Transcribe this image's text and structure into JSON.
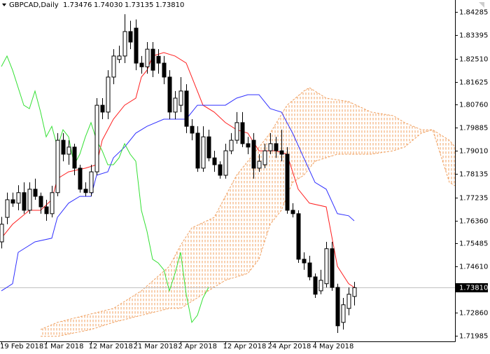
{
  "chart_data": {
    "type": "candlestick",
    "header": {
      "symbol": "GBPCAD,Daily",
      "values": [
        "1.73476",
        "1.74030",
        "1.73135",
        "1.73810"
      ]
    },
    "ylim": [
      1.71769,
      1.84738
    ],
    "yticks": [
      1.84285,
      1.83395,
      {
        "value": 1.8251,
        "label": "1.82510"
      },
      1.81625,
      {
        "value": 1.8076,
        "label": "1.80760"
      },
      1.79885,
      {
        "value": 1.7901,
        "label": "1.79010"
      },
      1.78135,
      1.77235,
      {
        "value": 1.7636,
        "label": "1.76360"
      },
      1.75485,
      {
        "value": 1.7461,
        "label": "1.74610"
      },
      {
        "value": 1.7286,
        "label": "1.72860"
      },
      1.71985
    ],
    "current_price": {
      "value": 1.7381,
      "label": "1.73810"
    },
    "xlim": [
      -0.25,
      81
    ],
    "xticks": [
      {
        "value": 0,
        "label": "19 Feb 2018"
      },
      {
        "value": 8,
        "label": "1 Mar 2018"
      },
      {
        "value": 16,
        "label": "12 Mar 2018"
      },
      {
        "value": 24,
        "label": "21 Mar 2018"
      },
      {
        "value": 32,
        "label": "2 Apr 2018"
      },
      {
        "value": 40,
        "label": "12 Apr 2018"
      },
      {
        "value": 48,
        "label": "24 Apr 2018"
      },
      {
        "value": 56,
        "label": "4 May 2018"
      }
    ],
    "up_color": "#ffffff",
    "down_color": "#000000",
    "wick_color": "#000000",
    "ohlc": [
      [
        1.7555,
        1.765,
        1.753,
        1.7622
      ],
      [
        1.7648,
        1.7742,
        1.7622,
        1.7715
      ],
      [
        1.7715,
        1.7742,
        1.7688,
        1.7702
      ],
      [
        1.7702,
        1.777,
        1.7675,
        1.7742
      ],
      [
        1.7742,
        1.7781,
        1.7662,
        1.7675
      ],
      [
        1.7675,
        1.7781,
        1.7662,
        1.7755
      ],
      [
        1.7755,
        1.7795,
        1.7715,
        1.7728
      ],
      [
        1.7728,
        1.7742,
        1.7662,
        1.7688
      ],
      [
        1.7688,
        1.7715,
        1.7635,
        1.7662
      ],
      [
        1.7662,
        1.7768,
        1.7648,
        1.7742
      ],
      [
        1.7742,
        1.7968,
        1.7728,
        1.7941
      ],
      [
        1.7941,
        1.7968,
        1.7861,
        1.7888
      ],
      [
        1.7888,
        1.7941,
        1.7848,
        1.7915
      ],
      [
        1.7915,
        1.7928,
        1.7808,
        1.7835
      ],
      [
        1.7835,
        1.7848,
        1.7742,
        1.7755
      ],
      [
        1.7755,
        1.7781,
        1.7728,
        1.7742
      ],
      [
        1.7742,
        1.7848,
        1.7728,
        1.7821
      ],
      [
        1.7821,
        1.8101,
        1.7808,
        1.8074
      ],
      [
        1.8074,
        1.8101,
        1.8021,
        1.8048
      ],
      [
        1.8048,
        1.8207,
        1.8021,
        1.8181
      ],
      [
        1.8181,
        1.8287,
        1.8154,
        1.8261
      ],
      [
        1.8248,
        1.83,
        1.8234,
        1.8261
      ],
      [
        1.8261,
        1.842,
        1.8234,
        1.8354
      ],
      [
        1.8354,
        1.8395,
        1.8287,
        1.8314
      ],
      [
        1.8367,
        1.84,
        1.8207,
        1.8234
      ],
      [
        1.8234,
        1.8261,
        1.8194,
        1.822
      ],
      [
        1.822,
        1.8314,
        1.8194,
        1.8287
      ],
      [
        1.8287,
        1.8314,
        1.8181,
        1.8207
      ],
      [
        1.826,
        1.8287,
        1.8194,
        1.8234
      ],
      [
        1.8234,
        1.8261,
        1.8154,
        1.8181
      ],
      [
        1.8181,
        1.8207,
        1.8021,
        1.8048
      ],
      [
        1.8048,
        1.8128,
        1.8021,
        1.8101
      ],
      [
        1.8074,
        1.8181,
        1.8048,
        1.8128
      ],
      [
        1.8128,
        1.8154,
        1.7968,
        1.7994
      ],
      [
        1.7994,
        1.8021,
        1.7941,
        1.7968
      ],
      [
        1.7968,
        1.7994,
        1.7821,
        1.7835
      ],
      [
        1.7835,
        1.7994,
        1.7821,
        1.7954
      ],
      [
        1.7954,
        1.7981,
        1.7861,
        1.7874
      ],
      [
        1.7874,
        1.7901,
        1.7821,
        1.7848
      ],
      [
        1.7848,
        1.7861,
        1.7795,
        1.7808
      ],
      [
        1.7808,
        1.7928,
        1.7795,
        1.7901
      ],
      [
        1.7901,
        1.7968,
        1.7888,
        1.7941
      ],
      [
        1.7941,
        1.8048,
        1.7928,
        1.8008
      ],
      [
        1.8008,
        1.8048,
        1.7915,
        1.7928
      ],
      [
        1.7928,
        1.7954,
        1.7888,
        1.7915
      ],
      [
        1.7941,
        1.7968,
        1.7795,
        1.7835
      ],
      [
        1.7835,
        1.7888,
        1.7821,
        1.7861
      ],
      [
        1.7848,
        1.7928,
        1.7835,
        1.7901
      ],
      [
        1.7901,
        1.7968,
        1.7888,
        1.7928
      ],
      [
        1.7928,
        1.7954,
        1.7874,
        1.7901
      ],
      [
        1.7901,
        1.7981,
        1.7861,
        1.7888
      ],
      [
        1.7888,
        1.7915,
        1.7662,
        1.7675
      ],
      [
        1.7675,
        1.7702,
        1.7648,
        1.7662
      ],
      [
        1.7662,
        1.7675,
        1.7475,
        1.7489
      ],
      [
        1.7489,
        1.7515,
        1.7449,
        1.7475
      ],
      [
        1.7475,
        1.7502,
        1.7409,
        1.7422
      ],
      [
        1.7422,
        1.7435,
        1.7342,
        1.7356
      ],
      [
        1.7369,
        1.7449,
        1.7356,
        1.7409
      ],
      [
        1.7396,
        1.7555,
        1.7382,
        1.7529
      ],
      [
        1.7529,
        1.7555,
        1.7369,
        1.7382
      ],
      [
        1.7382,
        1.7396,
        1.7209,
        1.7236
      ],
      [
        1.7249,
        1.7342,
        1.7222,
        1.7316
      ],
      [
        1.7302,
        1.7382,
        1.7276,
        1.7356
      ],
      [
        1.73476,
        1.7403,
        1.73135,
        1.7381
      ]
    ],
    "series": [
      {
        "color": "#ff2020",
        "x": [
          0,
          2,
          5,
          7,
          9,
          10,
          12,
          15,
          17,
          18,
          20,
          22,
          24,
          25,
          26,
          27,
          29,
          31,
          33,
          34,
          36,
          38,
          40,
          42,
          44,
          46,
          49,
          51,
          53,
          55,
          58,
          60,
          62,
          63
        ],
        "values": [
          1.7569,
          1.7622,
          1.7675,
          1.7675,
          1.7715,
          1.7795,
          1.7821,
          1.7835,
          1.7848,
          1.7941,
          1.8021,
          1.8074,
          1.8101,
          1.8181,
          1.8207,
          1.8261,
          1.8274,
          1.8261,
          1.8234,
          1.8181,
          1.8074,
          1.8048,
          1.8008,
          1.7981,
          1.7968,
          1.7901,
          1.7901,
          1.7888,
          1.7755,
          1.7702,
          1.7688,
          1.7462,
          1.7396,
          1.7382
        ]
      },
      {
        "color": "#3030ff",
        "x": [
          0,
          2,
          3,
          6,
          9,
          10,
          12,
          14,
          16,
          17,
          19,
          20,
          22,
          24,
          26,
          29,
          33,
          35,
          38,
          40,
          42,
          44,
          46,
          48,
          50,
          52,
          54,
          56,
          58,
          60,
          62,
          63
        ],
        "values": [
          1.7369,
          1.7396,
          1.7515,
          1.7555,
          1.7569,
          1.7648,
          1.7702,
          1.7728,
          1.7728,
          1.7808,
          1.7821,
          1.7874,
          1.7915,
          1.7968,
          1.7994,
          1.8021,
          1.8021,
          1.8074,
          1.8074,
          1.8074,
          1.8101,
          1.8114,
          1.8114,
          1.8061,
          1.8048,
          1.7968,
          1.7874,
          1.7781,
          1.7755,
          1.7662,
          1.7654,
          1.7635
        ]
      },
      {
        "color": "#33e033",
        "x": [
          0,
          1,
          2,
          4,
          5,
          6,
          7,
          8,
          9,
          10,
          11,
          12,
          13,
          14,
          15,
          16,
          17,
          18,
          19,
          20,
          21,
          22,
          23,
          24,
          25,
          26,
          27,
          28,
          29,
          30,
          31,
          32,
          33,
          34,
          35,
          36,
          37
        ],
        "values": [
          1.8221,
          1.8261,
          1.8207,
          1.8074,
          1.8061,
          1.8128,
          1.8048,
          1.7954,
          1.7994,
          1.7915,
          1.7981,
          1.7954,
          1.7848,
          1.7888,
          1.7954,
          1.8008,
          1.7941,
          1.7901,
          1.7848,
          1.7848,
          1.7874,
          1.7928,
          1.7888,
          1.7861,
          1.7675,
          1.7595,
          1.7489,
          1.7475,
          1.7449,
          1.7369,
          1.7435,
          1.7515,
          1.7356,
          1.7249,
          1.7276,
          1.7342,
          1.7382
        ]
      }
    ],
    "cloud": {
      "color": "#f0a060",
      "span_a": {
        "x": [
          7,
          10,
          15,
          20,
          25,
          30,
          32,
          34,
          38,
          42,
          44,
          48,
          51,
          54,
          55,
          58,
          62,
          66,
          70,
          72,
          75,
          77,
          80,
          81
        ],
        "values": [
          1.7222,
          1.7249,
          1.7276,
          1.7302,
          1.7369,
          1.7462,
          1.7542,
          1.7608,
          1.7648,
          1.7808,
          1.7861,
          1.7968,
          1.8074,
          1.8128,
          1.8141,
          1.8101,
          1.8088,
          1.8048,
          1.8034,
          1.8008,
          1.7981,
          1.7981,
          1.7941,
          1.7915
        ]
      },
      "span_b": {
        "x": [
          7,
          10,
          16,
          20,
          25,
          30,
          32,
          34,
          36,
          40,
          44,
          46,
          48,
          50,
          52,
          54,
          56,
          60,
          66,
          70,
          72,
          75,
          77,
          80,
          81
        ],
        "values": [
          1.7196,
          1.7196,
          1.7222,
          1.7249,
          1.7276,
          1.7302,
          1.7302,
          1.7329,
          1.7356,
          1.7409,
          1.7435,
          1.7489,
          1.7622,
          1.7675,
          1.7781,
          1.7808,
          1.7861,
          1.7888,
          1.7888,
          1.7901,
          1.7915,
          1.7968,
          1.7981,
          1.7781,
          1.7768
        ]
      }
    }
  }
}
